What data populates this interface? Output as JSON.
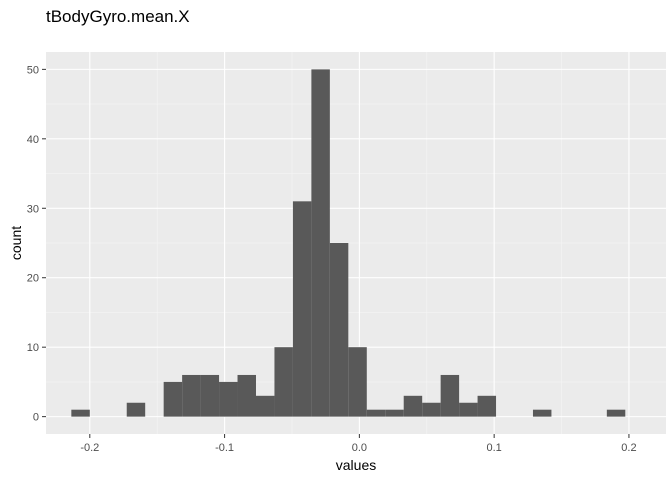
{
  "chart_data": {
    "type": "bar",
    "title": "tBodyGyro.mean.X",
    "xlabel": "values",
    "ylabel": "count",
    "xlim": [
      -0.2325,
      0.2275
    ],
    "ylim": [
      -2.5,
      52.5
    ],
    "x_ticks": [
      {
        "value": -0.2,
        "label": "-0.2"
      },
      {
        "value": -0.1,
        "label": "-0.1"
      },
      {
        "value": 0.0,
        "label": "0.0"
      },
      {
        "value": 0.1,
        "label": "0.1"
      },
      {
        "value": 0.2,
        "label": "0.2"
      }
    ],
    "y_ticks": [
      {
        "value": 0,
        "label": "0"
      },
      {
        "value": 10,
        "label": "10"
      },
      {
        "value": 20,
        "label": "20"
      },
      {
        "value": 30,
        "label": "30"
      },
      {
        "value": 40,
        "label": "40"
      },
      {
        "value": 50,
        "label": "50"
      }
    ],
    "bin_width": 0.0137,
    "bins": [
      {
        "x0": -0.2137,
        "x1": -0.2,
        "count": 1
      },
      {
        "x0": -0.1726,
        "x1": -0.1589,
        "count": 2
      },
      {
        "x0": -0.1452,
        "x1": -0.1315,
        "count": 5
      },
      {
        "x0": -0.1315,
        "x1": -0.1178,
        "count": 6
      },
      {
        "x0": -0.1178,
        "x1": -0.1041,
        "count": 6
      },
      {
        "x0": -0.1041,
        "x1": -0.0904,
        "count": 5
      },
      {
        "x0": -0.0904,
        "x1": -0.0767,
        "count": 6
      },
      {
        "x0": -0.0767,
        "x1": -0.063,
        "count": 3
      },
      {
        "x0": -0.063,
        "x1": -0.0493,
        "count": 10
      },
      {
        "x0": -0.0493,
        "x1": -0.0356,
        "count": 31
      },
      {
        "x0": -0.0356,
        "x1": -0.0219,
        "count": 50
      },
      {
        "x0": -0.0219,
        "x1": -0.0082,
        "count": 25
      },
      {
        "x0": -0.0082,
        "x1": 0.0055,
        "count": 10
      },
      {
        "x0": 0.0055,
        "x1": 0.0192,
        "count": 1
      },
      {
        "x0": 0.0192,
        "x1": 0.0329,
        "count": 1
      },
      {
        "x0": 0.0329,
        "x1": 0.0466,
        "count": 3
      },
      {
        "x0": 0.0466,
        "x1": 0.0603,
        "count": 2
      },
      {
        "x0": 0.0603,
        "x1": 0.074,
        "count": 6
      },
      {
        "x0": 0.074,
        "x1": 0.0877,
        "count": 2
      },
      {
        "x0": 0.0877,
        "x1": 0.1014,
        "count": 3
      },
      {
        "x0": 0.1288,
        "x1": 0.1425,
        "count": 1
      },
      {
        "x0": 0.1836,
        "x1": 0.1973,
        "count": 1
      }
    ],
    "grid": true,
    "legend": "none",
    "colors": {
      "bar": "#595959",
      "panel": "#ebebeb",
      "grid_major": "#ffffff",
      "grid_minor": "#f5f5f5",
      "tick_text": "#4d4d4d",
      "tick_mark": "#333333"
    }
  }
}
